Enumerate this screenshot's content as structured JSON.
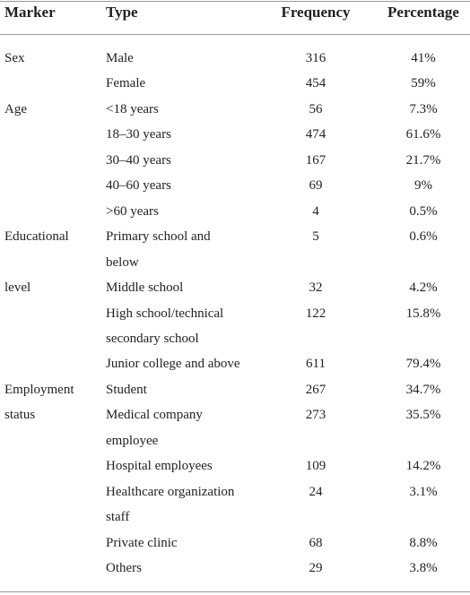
{
  "table": {
    "header": [
      "Marker",
      "Type",
      "Frequency",
      "Percentage"
    ],
    "rows": [
      {
        "marker": "Sex",
        "type": [
          "Male"
        ],
        "frequency": "316",
        "percentage": "41%"
      },
      {
        "type": [
          "Female"
        ],
        "frequency": "454",
        "percentage": "59%"
      },
      {
        "marker": "Age",
        "type": [
          "<18 years"
        ],
        "frequency": "56",
        "percentage": "7.3%"
      },
      {
        "type": [
          "18–30 years"
        ],
        "frequency": "474",
        "percentage": "61.6%"
      },
      {
        "type": [
          "30–40 years"
        ],
        "frequency": "167",
        "percentage": "21.7%"
      },
      {
        "type": [
          "40–60 years"
        ],
        "frequency": "69",
        "percentage": "9%"
      },
      {
        "type": [
          ">60 years"
        ],
        "frequency": "4",
        "percentage": "0.5%"
      },
      {
        "marker": "Educational",
        "type": [
          "Primary school and",
          "below"
        ],
        "frequency": "5",
        "percentage": "0.6%"
      },
      {
        "marker": "level",
        "type": [
          "Middle school"
        ],
        "frequency": "32",
        "percentage": "4.2%"
      },
      {
        "type": [
          "High school/technical",
          "secondary school"
        ],
        "frequency": "122",
        "percentage": "15.8%"
      },
      {
        "type": [
          "Junior college and above"
        ],
        "frequency": "611",
        "percentage": "79.4%"
      },
      {
        "marker": "Employment",
        "type": [
          "Student"
        ],
        "frequency": "267",
        "percentage": "34.7%"
      },
      {
        "marker": "status",
        "type": [
          "Medical company",
          "employee"
        ],
        "frequency": "273",
        "percentage": "35.5%"
      },
      {
        "type": [
          "Hospital employees"
        ],
        "frequency": "109",
        "percentage": "14.2%"
      },
      {
        "type": [
          "Healthcare organization",
          "staff"
        ],
        "frequency": "24",
        "percentage": "3.1%"
      },
      {
        "type": [
          "Private clinic"
        ],
        "frequency": "68",
        "percentage": "8.8%"
      },
      {
        "type": [
          "Others"
        ],
        "frequency": "29",
        "percentage": "3.8%"
      }
    ]
  }
}
